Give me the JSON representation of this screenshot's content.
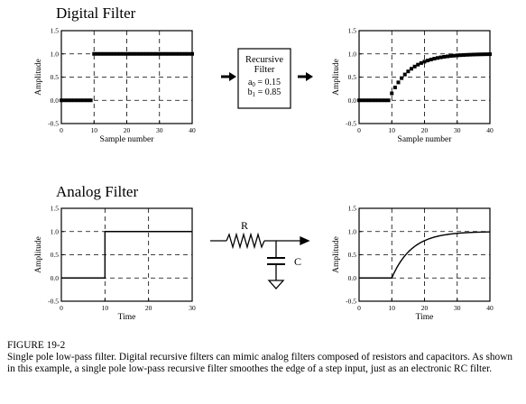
{
  "sections": {
    "digital_title": "Digital Filter",
    "analog_title": "Analog Filter"
  },
  "filter_box": {
    "line1": "Recursive",
    "line2": "Filter",
    "a0_symbol": "a",
    "a0_sub": "0",
    "a0_value": " = 0.15",
    "b1_symbol": "b",
    "b1_sub": "1",
    "b1_value": " = 0.85"
  },
  "circuit": {
    "resistor_label": "R",
    "capacitor_label": "C"
  },
  "caption": {
    "heading": "FIGURE 19-2",
    "body": "Single pole low-pass filter.  Digital recursive filters can mimic analog filters composed of resistors and capacitors.  As shown in this example, a single pole low-pass recursive filter smoothes the edge of a step input, just as an electronic RC filter."
  },
  "chart_data": [
    {
      "id": "digital-input",
      "type": "scatter",
      "xlabel": "Sample number",
      "ylabel": "Amplitude",
      "xlim": [
        0,
        40
      ],
      "ylim": [
        -0.5,
        1.5
      ],
      "xticks": [
        "0",
        "10",
        "20",
        "30",
        "40"
      ],
      "yticks": [
        "1.5",
        "1.0",
        "0.5",
        "0.0",
        "-0.5"
      ],
      "grid": true,
      "points": "step input: x[n] = 0 for n = 0..9, x[n] = 1 for n = 10..40"
    },
    {
      "id": "digital-output",
      "type": "scatter",
      "xlabel": "Sample number",
      "ylabel": "Amplitude",
      "xlim": [
        0,
        40
      ],
      "ylim": [
        -0.5,
        1.5
      ],
      "xticks": [
        "0",
        "10",
        "20",
        "30",
        "40"
      ],
      "yticks": [
        "1.5",
        "1.0",
        "0.5",
        "0.0",
        "-0.5"
      ],
      "grid": true,
      "a0": 0.15,
      "b1": 0.85,
      "points": "y[n] = 0.15 x[n] + 0.85 y[n-1], n = 0..40"
    },
    {
      "id": "analog-input",
      "type": "line",
      "xlabel": "Time",
      "ylabel": "Amplitude",
      "xlim": [
        0,
        30
      ],
      "ylim": [
        -0.5,
        1.5
      ],
      "xticks": [
        "0",
        "10",
        "20",
        "30"
      ],
      "yticks": [
        "1.5",
        "1.0",
        "0.5",
        "0.0",
        "-0.5"
      ],
      "grid": true,
      "step_at": 10
    },
    {
      "id": "analog-output",
      "type": "line",
      "xlabel": "Time",
      "ylabel": "Amplitude",
      "xlim": [
        0,
        40
      ],
      "ylim": [
        -0.5,
        1.5
      ],
      "xticks": [
        "0",
        "10",
        "20",
        "30",
        "40"
      ],
      "yticks": [
        "1.5",
        "1.0",
        "0.5",
        "0.0",
        "-0.5"
      ],
      "grid": true,
      "step_at": 10,
      "tau": 6.15
    }
  ]
}
